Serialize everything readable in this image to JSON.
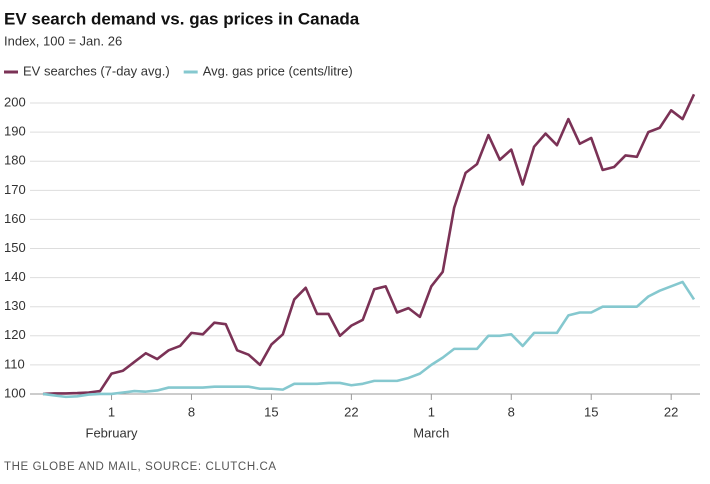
{
  "chart_data": {
    "type": "line",
    "title": "EV search demand vs. gas prices in Canada",
    "subtitle": "Index, 100 = Jan. 26",
    "source": "THE GLOBE AND MAIL, SOURCE: CLUTCH.CA",
    "x": [
      "Jan 26",
      "Jan 27",
      "Jan 28",
      "Jan 29",
      "Jan 30",
      "Jan 31",
      "Feb 1",
      "Feb 2",
      "Feb 3",
      "Feb 4",
      "Feb 5",
      "Feb 6",
      "Feb 7",
      "Feb 8",
      "Feb 9",
      "Feb 10",
      "Feb 11",
      "Feb 12",
      "Feb 13",
      "Feb 14",
      "Feb 15",
      "Feb 16",
      "Feb 17",
      "Feb 18",
      "Feb 19",
      "Feb 20",
      "Feb 21",
      "Feb 22",
      "Feb 23",
      "Feb 24",
      "Feb 25",
      "Feb 26",
      "Feb 27",
      "Feb 28",
      "Mar 1",
      "Mar 2",
      "Mar 3",
      "Mar 4",
      "Mar 5",
      "Mar 6",
      "Mar 7",
      "Mar 8",
      "Mar 9",
      "Mar 10",
      "Mar 11",
      "Mar 12",
      "Mar 13",
      "Mar 14",
      "Mar 15",
      "Mar 16",
      "Mar 17",
      "Mar 18",
      "Mar 19",
      "Mar 20",
      "Mar 21",
      "Mar 22",
      "Mar 23",
      "Mar 24"
    ],
    "series": [
      {
        "name": "EV searches (7-day avg.)",
        "color": "#7b3256",
        "values": [
          100,
          100.2,
          100.2,
          100.3,
          100.5,
          101,
          107,
          108,
          111,
          114,
          112,
          115,
          116.5,
          121,
          120.5,
          124.5,
          124,
          115,
          113.5,
          110,
          117,
          120.5,
          132.5,
          136.5,
          127.5,
          127.5,
          120,
          123.5,
          125.5,
          136,
          137,
          128,
          129.5,
          126.5,
          137,
          142,
          164,
          176,
          179,
          189,
          180.5,
          184,
          172,
          185,
          189.5,
          185.5,
          194.5,
          186,
          188,
          177,
          178,
          182,
          181.5,
          190,
          191.5,
          197.5,
          194.5,
          203
        ]
      },
      {
        "name": "Avg. gas price (cents/litre)",
        "color": "#85c8cf",
        "values": [
          100,
          99.5,
          99,
          99.2,
          99.8,
          100,
          100,
          100.5,
          101,
          100.8,
          101.2,
          102.2,
          102.2,
          102.2,
          102.2,
          102.5,
          102.5,
          102.5,
          102.5,
          101.8,
          101.8,
          101.5,
          103.5,
          103.5,
          103.5,
          103.8,
          103.8,
          103,
          103.5,
          104.5,
          104.5,
          104.5,
          105.5,
          107,
          110,
          112.5,
          115.5,
          115.5,
          115.5,
          120,
          120,
          120.5,
          116.5,
          121,
          121,
          121,
          127,
          128,
          128,
          130,
          130,
          130,
          130,
          133.5,
          135.5,
          137,
          138.5,
          132.5
        ]
      }
    ],
    "xticks": [
      {
        "value": "Feb 1",
        "label": "1"
      },
      {
        "value": "Feb 8",
        "label": "8"
      },
      {
        "value": "Feb 15",
        "label": "15"
      },
      {
        "value": "Feb 22",
        "label": "22"
      },
      {
        "value": "Mar 1",
        "label": "1"
      },
      {
        "value": "Mar 8",
        "label": "8"
      },
      {
        "value": "Mar 15",
        "label": "15"
      },
      {
        "value": "Mar 22",
        "label": "22"
      }
    ],
    "month_labels": [
      {
        "value": "Feb 1",
        "label": "February"
      },
      {
        "value": "Mar 1",
        "label": "March"
      }
    ],
    "ylim": [
      97,
      204
    ],
    "yticks": [
      100,
      110,
      120,
      130,
      140,
      150,
      160,
      170,
      180,
      190,
      200
    ],
    "grid": true
  }
}
